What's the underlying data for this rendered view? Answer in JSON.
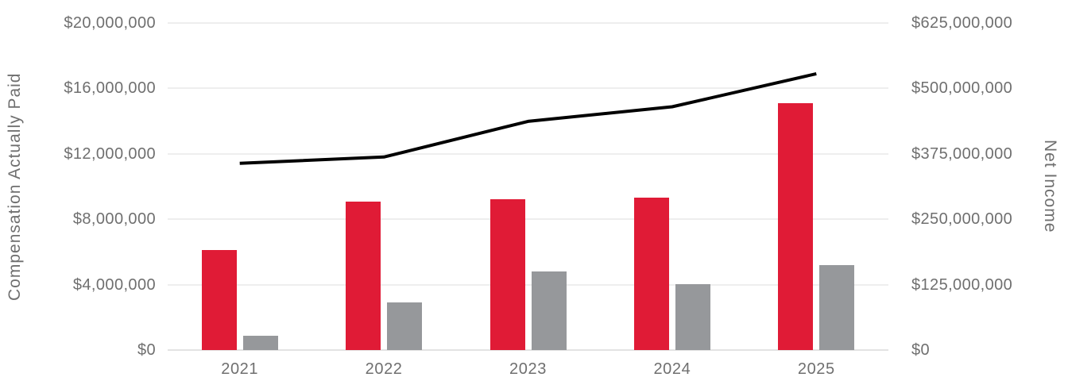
{
  "chart_data": {
    "type": "bar",
    "subtype": "combo-bar-line-dual-axis",
    "categories": [
      "2021",
      "2022",
      "2023",
      "2024",
      "2025"
    ],
    "series": [
      {
        "id": "red-bars",
        "type": "bar",
        "axis": "left",
        "color": "#e01b36",
        "values": [
          6100000,
          9100000,
          9200000,
          9300000,
          15100000
        ]
      },
      {
        "id": "gray-bars",
        "type": "bar",
        "axis": "left",
        "color": "#96989b",
        "values": [
          850000,
          2900000,
          4800000,
          4050000,
          5200000
        ]
      },
      {
        "id": "net-income-line",
        "type": "line",
        "axis": "right",
        "color": "#000000",
        "values": [
          357000000,
          369000000,
          437000000,
          465000000,
          528000000
        ]
      }
    ],
    "left_axis": {
      "title": "Compensation Actually Paid",
      "min": 0,
      "max": 20000000,
      "tick_labels_top_to_bottom": [
        "$20,000,000",
        "$16,000,000",
        "$12,000,000",
        "$8,000,000",
        "$4,000,000",
        "$0"
      ]
    },
    "right_axis": {
      "title": "Net Income",
      "min": 0,
      "max": 625000000,
      "tick_labels_top_to_bottom": [
        "$625,000,000",
        "$500,000,000",
        "$375,000,000",
        "$250,000,000",
        "$125,000,000",
        "$0"
      ]
    },
    "grid": true,
    "legend": false,
    "title": "",
    "xlabel": ""
  },
  "colors": {
    "red_bar": "#e01b36",
    "gray_bar": "#96989b",
    "line": "#000000",
    "gridline": "#eeeeee",
    "baseline": "#e3e3e3",
    "text": "#6f6f6f",
    "background": "#ffffff"
  }
}
